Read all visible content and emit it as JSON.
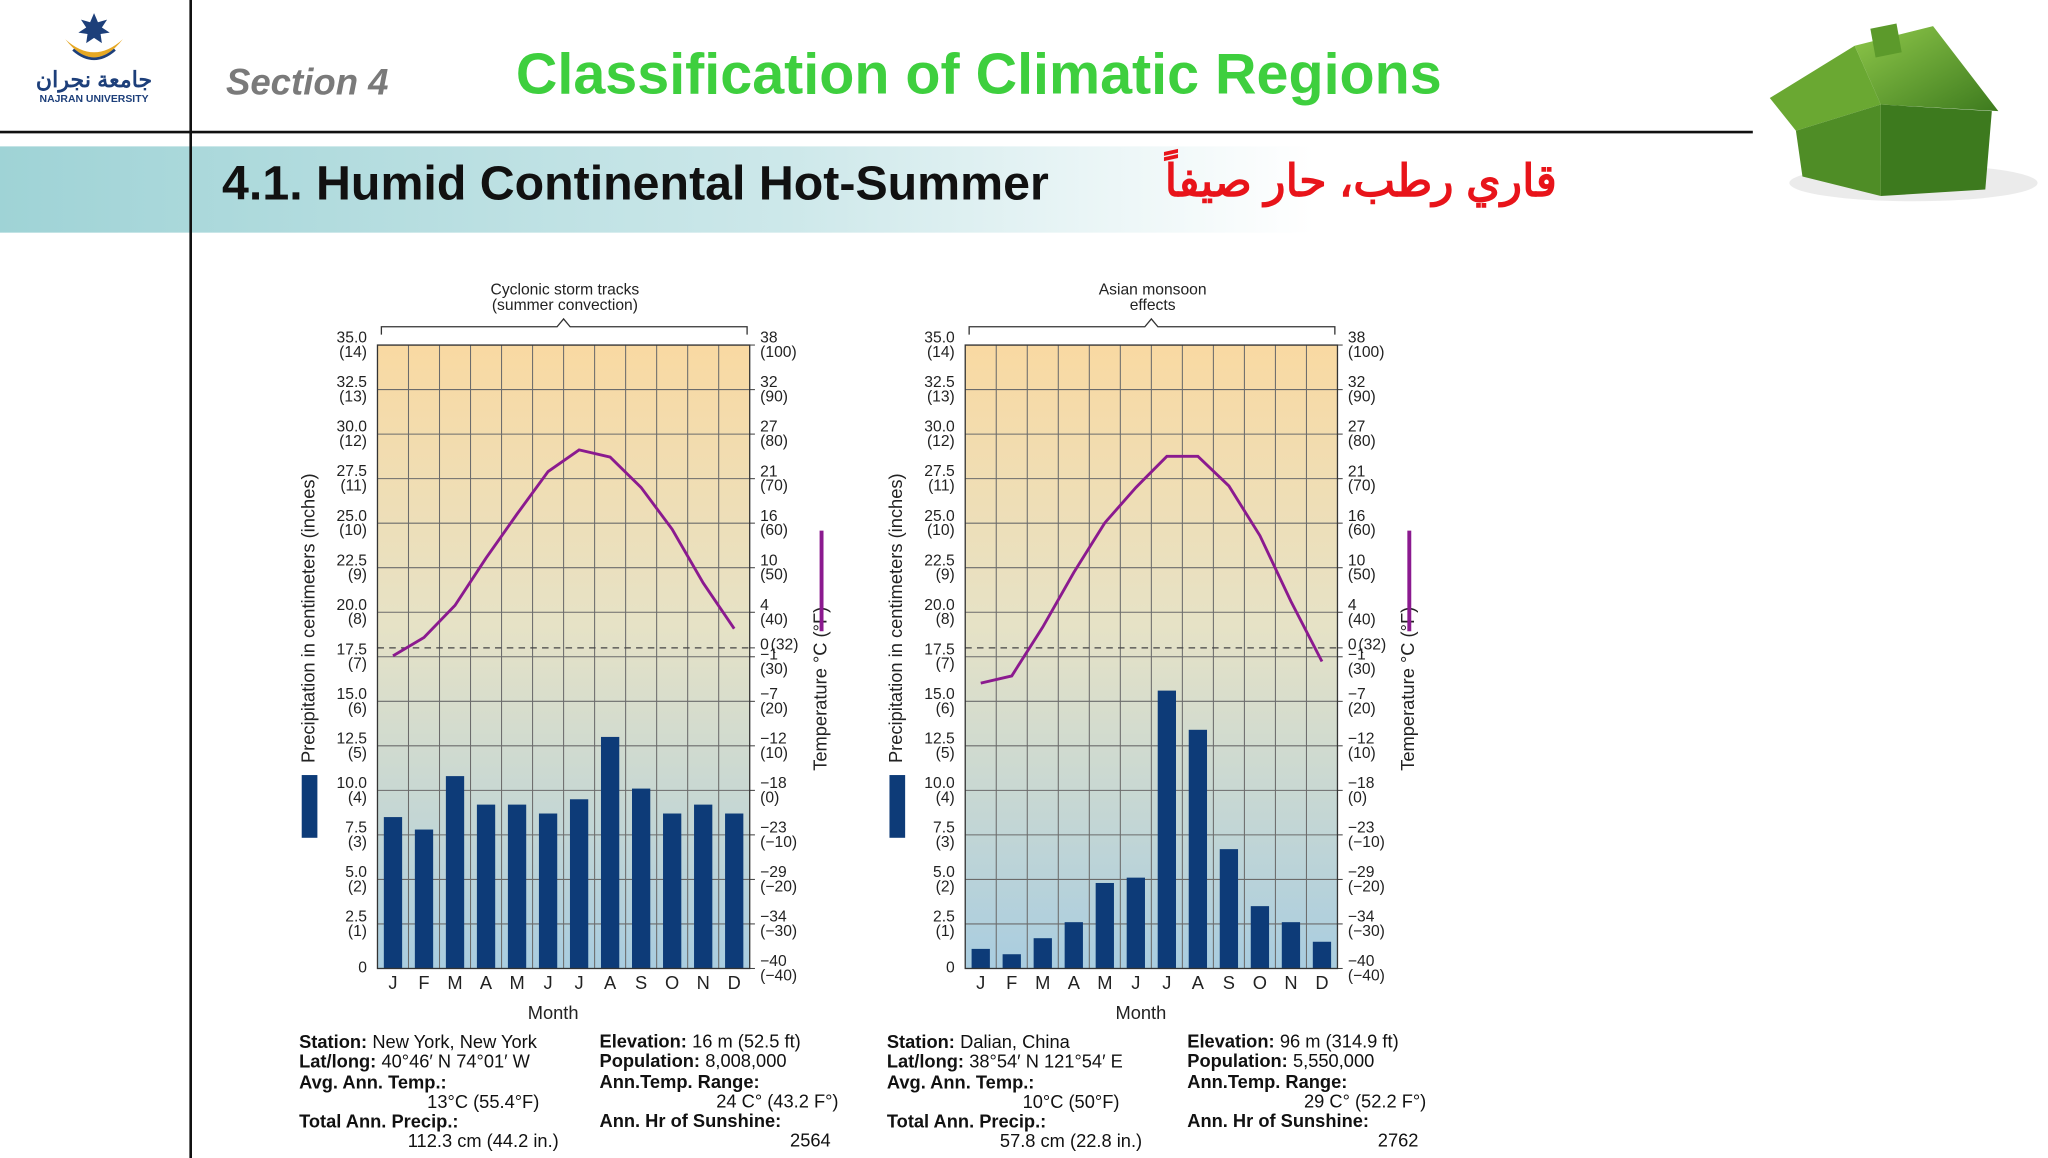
{
  "logo": {
    "name_ar": "جامعة نجران",
    "name_en": "NAJRAN UNIVERSITY"
  },
  "header": {
    "section": "Section 4",
    "title": "Classification of Climatic Regions",
    "subtitle": "4.1. Humid Continental Hot-Summer",
    "subtitle_ar": "قاري رطب، حار صيفاً"
  },
  "chart_data": [
    {
      "type": "bar",
      "annotation": [
        "Cyclonic storm tracks",
        "(summer convection)"
      ],
      "categories": [
        "J",
        "F",
        "M",
        "A",
        "M",
        "J",
        "J",
        "A",
        "S",
        "O",
        "N",
        "D"
      ],
      "xlabel": "Month",
      "ylabel": "Precipitation in centimeters (inches)",
      "y2label": "Temperature °C (°F)",
      "ylim": [
        0,
        35
      ],
      "yticks": [
        0,
        {
          "value": 2.5,
          "label": "2.5",
          "sublabel": "(1)"
        },
        {
          "value": 5,
          "label": "5.0",
          "sublabel": "(2)"
        },
        {
          "value": 7.5,
          "label": "7.5",
          "sublabel": "(3)"
        },
        {
          "value": 10,
          "label": "10.0",
          "sublabel": "(4)"
        },
        {
          "value": 12.5,
          "label": "12.5",
          "sublabel": "(5)"
        },
        {
          "value": 15,
          "label": "15.0",
          "sublabel": "(6)"
        },
        {
          "value": 17.5,
          "label": "17.5",
          "sublabel": "(7)"
        },
        {
          "value": 20,
          "label": "20.0",
          "sublabel": "(8)"
        },
        {
          "value": 22.5,
          "label": "22.5",
          "sublabel": "(9)"
        },
        {
          "value": 25,
          "label": "25.0",
          "sublabel": "(10)"
        },
        {
          "value": 27.5,
          "label": "27.5",
          "sublabel": "(11)"
        },
        {
          "value": 30,
          "label": "30.0",
          "sublabel": "(12)"
        },
        {
          "value": 32.5,
          "label": "32.5",
          "sublabel": "(13)"
        },
        {
          "value": 35,
          "label": "35.0",
          "sublabel": "(14)"
        }
      ],
      "y2lim": [
        -40,
        37.78
      ],
      "y2ticks": [
        {
          "value": -40,
          "label": "−40",
          "sublabel": "(−40)"
        },
        {
          "value": -34.44,
          "label": "−34",
          "sublabel": "(−30)"
        },
        {
          "value": -28.89,
          "label": "−29",
          "sublabel": "(−20)"
        },
        {
          "value": -23.33,
          "label": "−23",
          "sublabel": "(−10)"
        },
        {
          "value": -17.78,
          "label": "−18",
          "sublabel": "(0)"
        },
        {
          "value": -12.22,
          "label": "−12",
          "sublabel": "(10)"
        },
        {
          "value": -6.67,
          "label": "−7",
          "sublabel": "(20)"
        },
        {
          "value": -1.11,
          "label": "−1",
          "sublabel": "(30)"
        },
        {
          "value": 0,
          "label": "0",
          "sublabel": "(32)"
        },
        {
          "value": 4.44,
          "label": "4",
          "sublabel": "(40)"
        },
        {
          "value": 10,
          "label": "10",
          "sublabel": "(50)"
        },
        {
          "value": 15.56,
          "label": "16",
          "sublabel": "(60)"
        },
        {
          "value": 21.11,
          "label": "21",
          "sublabel": "(70)"
        },
        {
          "value": 26.67,
          "label": "27",
          "sublabel": "(80)"
        },
        {
          "value": 32.22,
          "label": "32",
          "sublabel": "(90)"
        },
        {
          "value": 37.78,
          "label": "38",
          "sublabel": "(100)"
        }
      ],
      "y2_reference": 0,
      "grid": true,
      "series": [
        {
          "type": "bar",
          "color": "#0d3b78",
          "values": [
            8.5,
            7.8,
            10.8,
            9.2,
            9.2,
            8.7,
            9.5,
            13.0,
            10.1,
            8.7,
            9.2,
            8.7
          ]
        },
        {
          "type": "line",
          "color": "#8b1a8f",
          "axis": "y2",
          "values": [
            -1.0,
            1.3,
            5.3,
            11.2,
            16.7,
            22.0,
            24.7,
            23.8,
            20.0,
            14.8,
            8.1,
            2.4
          ]
        }
      ],
      "station": [
        {
          "label": "Station:",
          "value": "New York, New York"
        },
        {
          "label": "Lat/long:",
          "value": "40°46′ N 74°01′ W"
        },
        {
          "label": "Avg. Ann. Temp.:",
          "value": "13°C (55.4°F)"
        },
        {
          "label": "Total Ann. Precip.:",
          "value": "112.3 cm (44.2 in.)"
        },
        {
          "label": "Elevation:",
          "value": "16 m (52.5 ft)"
        },
        {
          "label": "Population:",
          "value": "8,008,000"
        },
        {
          "label": "Ann.Temp. Range:",
          "value": "24 C° (43.2 F°)"
        },
        {
          "label": "Ann. Hr of Sunshine:",
          "value": "2564"
        }
      ]
    },
    {
      "type": "bar",
      "annotation": [
        "Asian monsoon",
        "effects"
      ],
      "categories": [
        "J",
        "F",
        "M",
        "A",
        "M",
        "J",
        "J",
        "A",
        "S",
        "O",
        "N",
        "D"
      ],
      "xlabel": "Month",
      "ylabel": "Precipitation in centimeters (inches)",
      "y2label": "Temperature °C (°F)",
      "ylim": [
        0,
        35
      ],
      "yticks": [
        0,
        {
          "value": 2.5,
          "label": "2.5",
          "sublabel": "(1)"
        },
        {
          "value": 5,
          "label": "5.0",
          "sublabel": "(2)"
        },
        {
          "value": 7.5,
          "label": "7.5",
          "sublabel": "(3)"
        },
        {
          "value": 10,
          "label": "10.0",
          "sublabel": "(4)"
        },
        {
          "value": 12.5,
          "label": "12.5",
          "sublabel": "(5)"
        },
        {
          "value": 15,
          "label": "15.0",
          "sublabel": "(6)"
        },
        {
          "value": 17.5,
          "label": "17.5",
          "sublabel": "(7)"
        },
        {
          "value": 20,
          "label": "20.0",
          "sublabel": "(8)"
        },
        {
          "value": 22.5,
          "label": "22.5",
          "sublabel": "(9)"
        },
        {
          "value": 25,
          "label": "25.0",
          "sublabel": "(10)"
        },
        {
          "value": 27.5,
          "label": "27.5",
          "sublabel": "(11)"
        },
        {
          "value": 30,
          "label": "30.0",
          "sublabel": "(12)"
        },
        {
          "value": 32.5,
          "label": "32.5",
          "sublabel": "(13)"
        },
        {
          "value": 35,
          "label": "35.0",
          "sublabel": "(14)"
        }
      ],
      "y2lim": [
        -40,
        37.78
      ],
      "y2ticks": [
        {
          "value": -40,
          "label": "−40",
          "sublabel": "(−40)"
        },
        {
          "value": -34.44,
          "label": "−34",
          "sublabel": "(−30)"
        },
        {
          "value": -28.89,
          "label": "−29",
          "sublabel": "(−20)"
        },
        {
          "value": -23.33,
          "label": "−23",
          "sublabel": "(−10)"
        },
        {
          "value": -17.78,
          "label": "−18",
          "sublabel": "(0)"
        },
        {
          "value": -12.22,
          "label": "−12",
          "sublabel": "(10)"
        },
        {
          "value": -6.67,
          "label": "−7",
          "sublabel": "(20)"
        },
        {
          "value": -1.11,
          "label": "−1",
          "sublabel": "(30)"
        },
        {
          "value": 0,
          "label": "0",
          "sublabel": "(32)"
        },
        {
          "value": 4.44,
          "label": "4",
          "sublabel": "(40)"
        },
        {
          "value": 10,
          "label": "10",
          "sublabel": "(50)"
        },
        {
          "value": 15.56,
          "label": "16",
          "sublabel": "(60)"
        },
        {
          "value": 21.11,
          "label": "21",
          "sublabel": "(70)"
        },
        {
          "value": 26.67,
          "label": "27",
          "sublabel": "(80)"
        },
        {
          "value": 32.22,
          "label": "32",
          "sublabel": "(90)"
        },
        {
          "value": 37.78,
          "label": "38",
          "sublabel": "(100)"
        }
      ],
      "y2_reference": 0,
      "grid": true,
      "series": [
        {
          "type": "bar",
          "color": "#0d3b78",
          "values": [
            1.1,
            0.8,
            1.7,
            2.6,
            4.8,
            5.1,
            15.6,
            13.4,
            6.7,
            3.5,
            2.6,
            1.5
          ]
        },
        {
          "type": "line",
          "color": "#8b1a8f",
          "axis": "y2",
          "values": [
            -4.4,
            -3.5,
            2.6,
            9.4,
            15.6,
            20.0,
            23.9,
            23.9,
            20.2,
            14.0,
            5.8,
            -1.7
          ]
        }
      ],
      "station": [
        {
          "label": "Station:",
          "value": "Dalian, China"
        },
        {
          "label": "Lat/long:",
          "value": "38°54′ N 121°54′ E"
        },
        {
          "label": "Avg. Ann. Temp.:",
          "value": "10°C (50°F)"
        },
        {
          "label": "Total Ann. Precip.:",
          "value": "57.8 cm (22.8 in.)"
        },
        {
          "label": "Elevation:",
          "value": "96 m (314.9 ft)"
        },
        {
          "label": "Population:",
          "value": "5,550,000"
        },
        {
          "label": "Ann.Temp. Range:",
          "value": "29 C° (52.2 F°)"
        },
        {
          "label": "Ann. Hr of Sunshine:",
          "value": "2762"
        }
      ]
    }
  ]
}
